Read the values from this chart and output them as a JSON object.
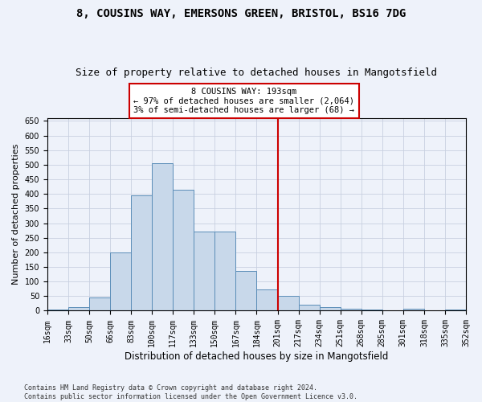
{
  "title1": "8, COUSINS WAY, EMERSONS GREEN, BRISTOL, BS16 7DG",
  "title2": "Size of property relative to detached houses in Mangotsfield",
  "xlabel": "Distribution of detached houses by size in Mangotsfield",
  "ylabel": "Number of detached properties",
  "footnote": "Contains HM Land Registry data © Crown copyright and database right 2024.\nContains public sector information licensed under the Open Government Licence v3.0.",
  "bin_labels": [
    "16sqm",
    "33sqm",
    "50sqm",
    "66sqm",
    "83sqm",
    "100sqm",
    "117sqm",
    "133sqm",
    "150sqm",
    "167sqm",
    "184sqm",
    "201sqm",
    "217sqm",
    "234sqm",
    "251sqm",
    "268sqm",
    "285sqm",
    "301sqm",
    "318sqm",
    "335sqm",
    "352sqm"
  ],
  "bar_values": [
    5,
    12,
    45,
    200,
    395,
    505,
    415,
    270,
    270,
    137,
    73,
    50,
    20,
    12,
    7,
    5,
    0,
    7,
    0,
    3
  ],
  "bar_color": "#c8d8ea",
  "bar_edge_color": "#5b8db8",
  "vline_x_index": 11,
  "vline_color": "#cc0000",
  "annotation_text": "8 COUSINS WAY: 193sqm\n← 97% of detached houses are smaller (2,064)\n3% of semi-detached houses are larger (68) →",
  "annotation_box_color": "white",
  "annotation_box_edge": "#cc0000",
  "ylim": [
    0,
    660
  ],
  "xlim_start": 16,
  "bin_width": 17,
  "num_bins": 20,
  "background_color": "#eef2fa",
  "grid_color": "#c8d0e0",
  "title1_fontsize": 10,
  "title2_fontsize": 9,
  "annotation_fontsize": 7.5,
  "tick_fontsize": 7,
  "ylabel_fontsize": 8,
  "xlabel_fontsize": 8.5
}
